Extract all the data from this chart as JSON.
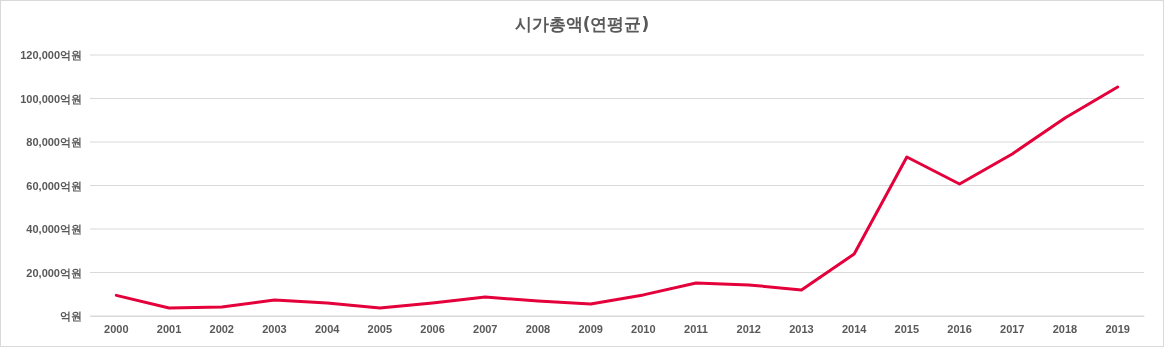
{
  "chart_data": {
    "type": "line",
    "title": "시가총액(연평균)",
    "categories": [
      "2000",
      "2001",
      "2002",
      "2003",
      "2004",
      "2005",
      "2006",
      "2007",
      "2008",
      "2009",
      "2010",
      "2011",
      "2012",
      "2013",
      "2014",
      "2015",
      "2016",
      "2017",
      "2018",
      "2019"
    ],
    "series": [
      {
        "color": "#e4003a",
        "values": [
          9500,
          3700,
          4100,
          7400,
          6000,
          3700,
          6000,
          8700,
          6900,
          5500,
          9700,
          15200,
          14300,
          12000,
          28500,
          73100,
          60700,
          74500,
          91000,
          105300
        ]
      }
    ],
    "ylim": [
      0,
      120000
    ],
    "yticks": [
      {
        "value": 0,
        "label": "억원"
      },
      {
        "value": 20000,
        "label": "20,000억원"
      },
      {
        "value": 40000,
        "label": "40,000억원"
      },
      {
        "value": 60000,
        "label": "60,000억원"
      },
      {
        "value": 80000,
        "label": "80,000억원"
      },
      {
        "value": 100000,
        "label": "100,000억원"
      },
      {
        "value": 120000,
        "label": "120,000억원"
      }
    ],
    "grid": "y",
    "marker": "none",
    "line_style": "solid"
  }
}
